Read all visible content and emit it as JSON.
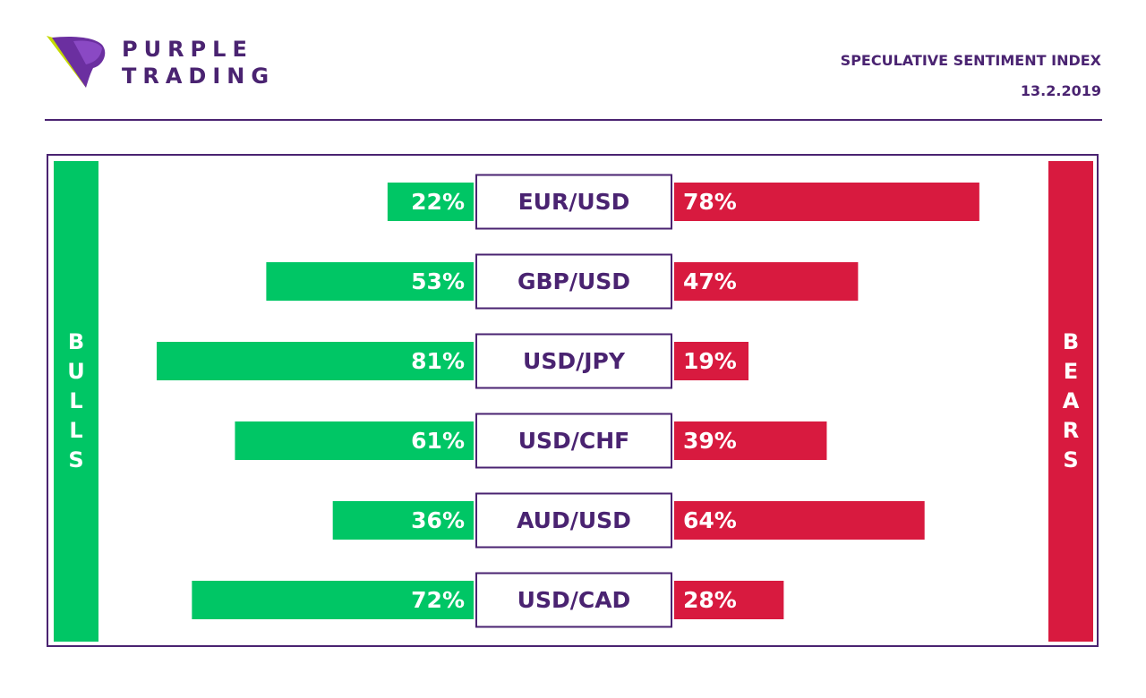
{
  "brand": {
    "line1": "PURPLE",
    "line2": "TRADING"
  },
  "header": {
    "title": "SPECULATIVE SENTIMENT INDEX",
    "date": "13.2.2019"
  },
  "colors": {
    "purple": "#4a2371",
    "bull_green": "#00c665",
    "bear_red": "#d81a3f",
    "logo_accent": "#c5d900"
  },
  "chart_data": {
    "type": "bar",
    "bulls_label": "BULLS",
    "bears_label": "BEARS",
    "categories": [
      "EUR/USD",
      "GBP/USD",
      "USD/JPY",
      "USD/CHF",
      "AUD/USD",
      "USD/CAD"
    ],
    "series": [
      {
        "name": "BULLS",
        "values": [
          22,
          53,
          81,
          61,
          36,
          72
        ],
        "labels": [
          "22%",
          "53%",
          "81%",
          "61%",
          "36%",
          "72%"
        ]
      },
      {
        "name": "BEARS",
        "values": [
          78,
          47,
          19,
          39,
          64,
          28
        ],
        "labels": [
          "78%",
          "47%",
          "19%",
          "39%",
          "64%",
          "28%"
        ]
      }
    ],
    "unit": "%",
    "ylim": [
      0,
      100
    ]
  }
}
